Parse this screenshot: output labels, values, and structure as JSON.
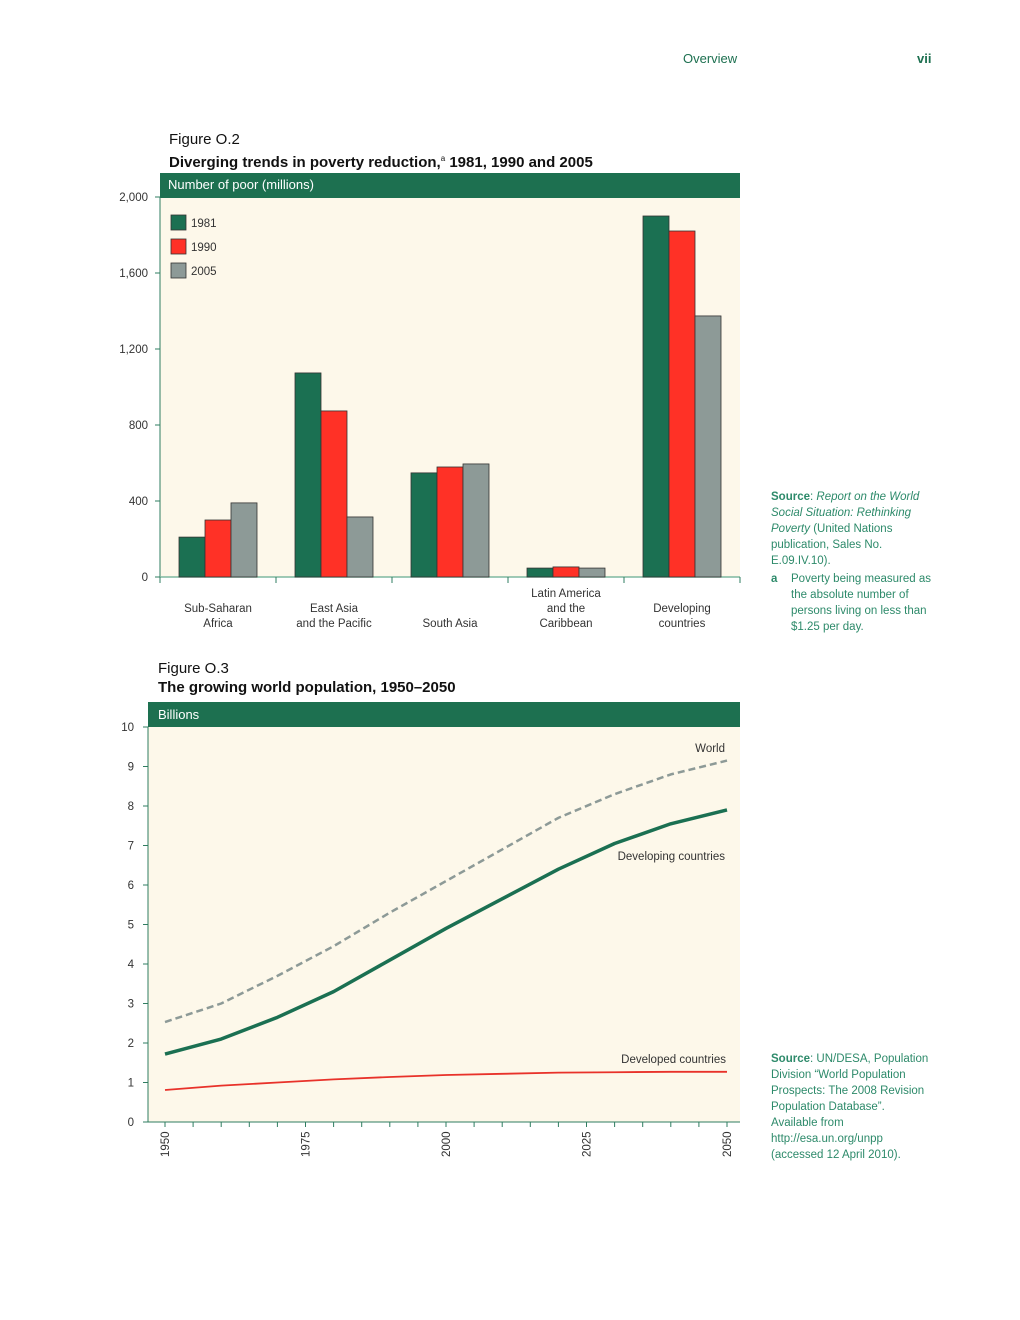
{
  "header": {
    "section": "Overview",
    "page": "vii"
  },
  "fig2": {
    "label": "Figure O.2",
    "title": "Diverging trends in poverty reduction,",
    "title_sup": "a",
    "title_rest": " 1981, 1990 and 2005",
    "source_label": "Source",
    "source_italic": "Report on the World Social Situation: Rethinking Poverty",
    "source_rest": " (United Nations publication, Sales No. E.09.IV.10).",
    "note_marker": "a",
    "note_text": "Poverty being measured as the absolute number of persons living on less than $1.25 per day."
  },
  "fig3": {
    "label": "Figure O.3",
    "title": "The growing world population, 1950–2050",
    "source_label": "Source",
    "source_rest": ": UN/DESA, Population Division “World Population Prospects: The 2008 Revision Population Database”. Available from http://esa.un.org/unpp (accessed 12 April 2010)."
  },
  "colors": {
    "header_band": "#1d7050",
    "plot_bg": "#fdf8ea",
    "c1981": "#1b7052",
    "c1990": "#ff3126",
    "c2005": "#8d9a97",
    "world": "#8d9a97",
    "developing": "#1b7052",
    "developed": "#e8322a"
  },
  "chart_data": [
    {
      "type": "bar",
      "ylabel": "Number of poor (millions)",
      "ylim": [
        0,
        2000
      ],
      "yticks": [
        "0",
        "400",
        "800",
        "1,200",
        "1,600",
        "2,000"
      ],
      "categories": [
        [
          "Sub-Saharan",
          "Africa"
        ],
        [
          "East Asia",
          "and the Pacific"
        ],
        [
          "South Asia"
        ],
        [
          "Latin America",
          "and the",
          "Caribbean"
        ],
        [
          "Developing",
          "countries"
        ]
      ],
      "legend": "top-left",
      "series": [
        {
          "name": "1981",
          "values": [
            210,
            1074,
            548,
            47,
            1900
          ]
        },
        {
          "name": "1990",
          "values": [
            300,
            874,
            579,
            53,
            1821
          ]
        },
        {
          "name": "2005",
          "values": [
            390,
            316,
            595,
            47,
            1374
          ]
        }
      ]
    },
    {
      "type": "line",
      "ylabel": "Billions",
      "ylim": [
        0,
        10
      ],
      "xlim": [
        1950,
        2050
      ],
      "yticks": [
        "0",
        "1",
        "2",
        "3",
        "4",
        "5",
        "6",
        "7",
        "8",
        "9",
        "10"
      ],
      "xticks": [
        "1950",
        "1975",
        "2000",
        "2025",
        "2050"
      ],
      "x": [
        1950,
        1960,
        1970,
        1980,
        1990,
        2000,
        2010,
        2020,
        2030,
        2040,
        2050
      ],
      "series": [
        {
          "name": "World",
          "style": "dashed",
          "values": [
            2.53,
            3.0,
            3.7,
            4.45,
            5.3,
            6.1,
            6.9,
            7.7,
            8.3,
            8.8,
            9.15
          ]
        },
        {
          "name": "Developing countries",
          "style": "solid",
          "values": [
            1.72,
            2.1,
            2.65,
            3.3,
            4.1,
            4.9,
            5.65,
            6.4,
            7.05,
            7.55,
            7.9
          ]
        },
        {
          "name": "Developed countries",
          "style": "solid",
          "values": [
            0.81,
            0.92,
            1.0,
            1.08,
            1.14,
            1.19,
            1.22,
            1.25,
            1.26,
            1.27,
            1.27
          ]
        }
      ]
    }
  ]
}
